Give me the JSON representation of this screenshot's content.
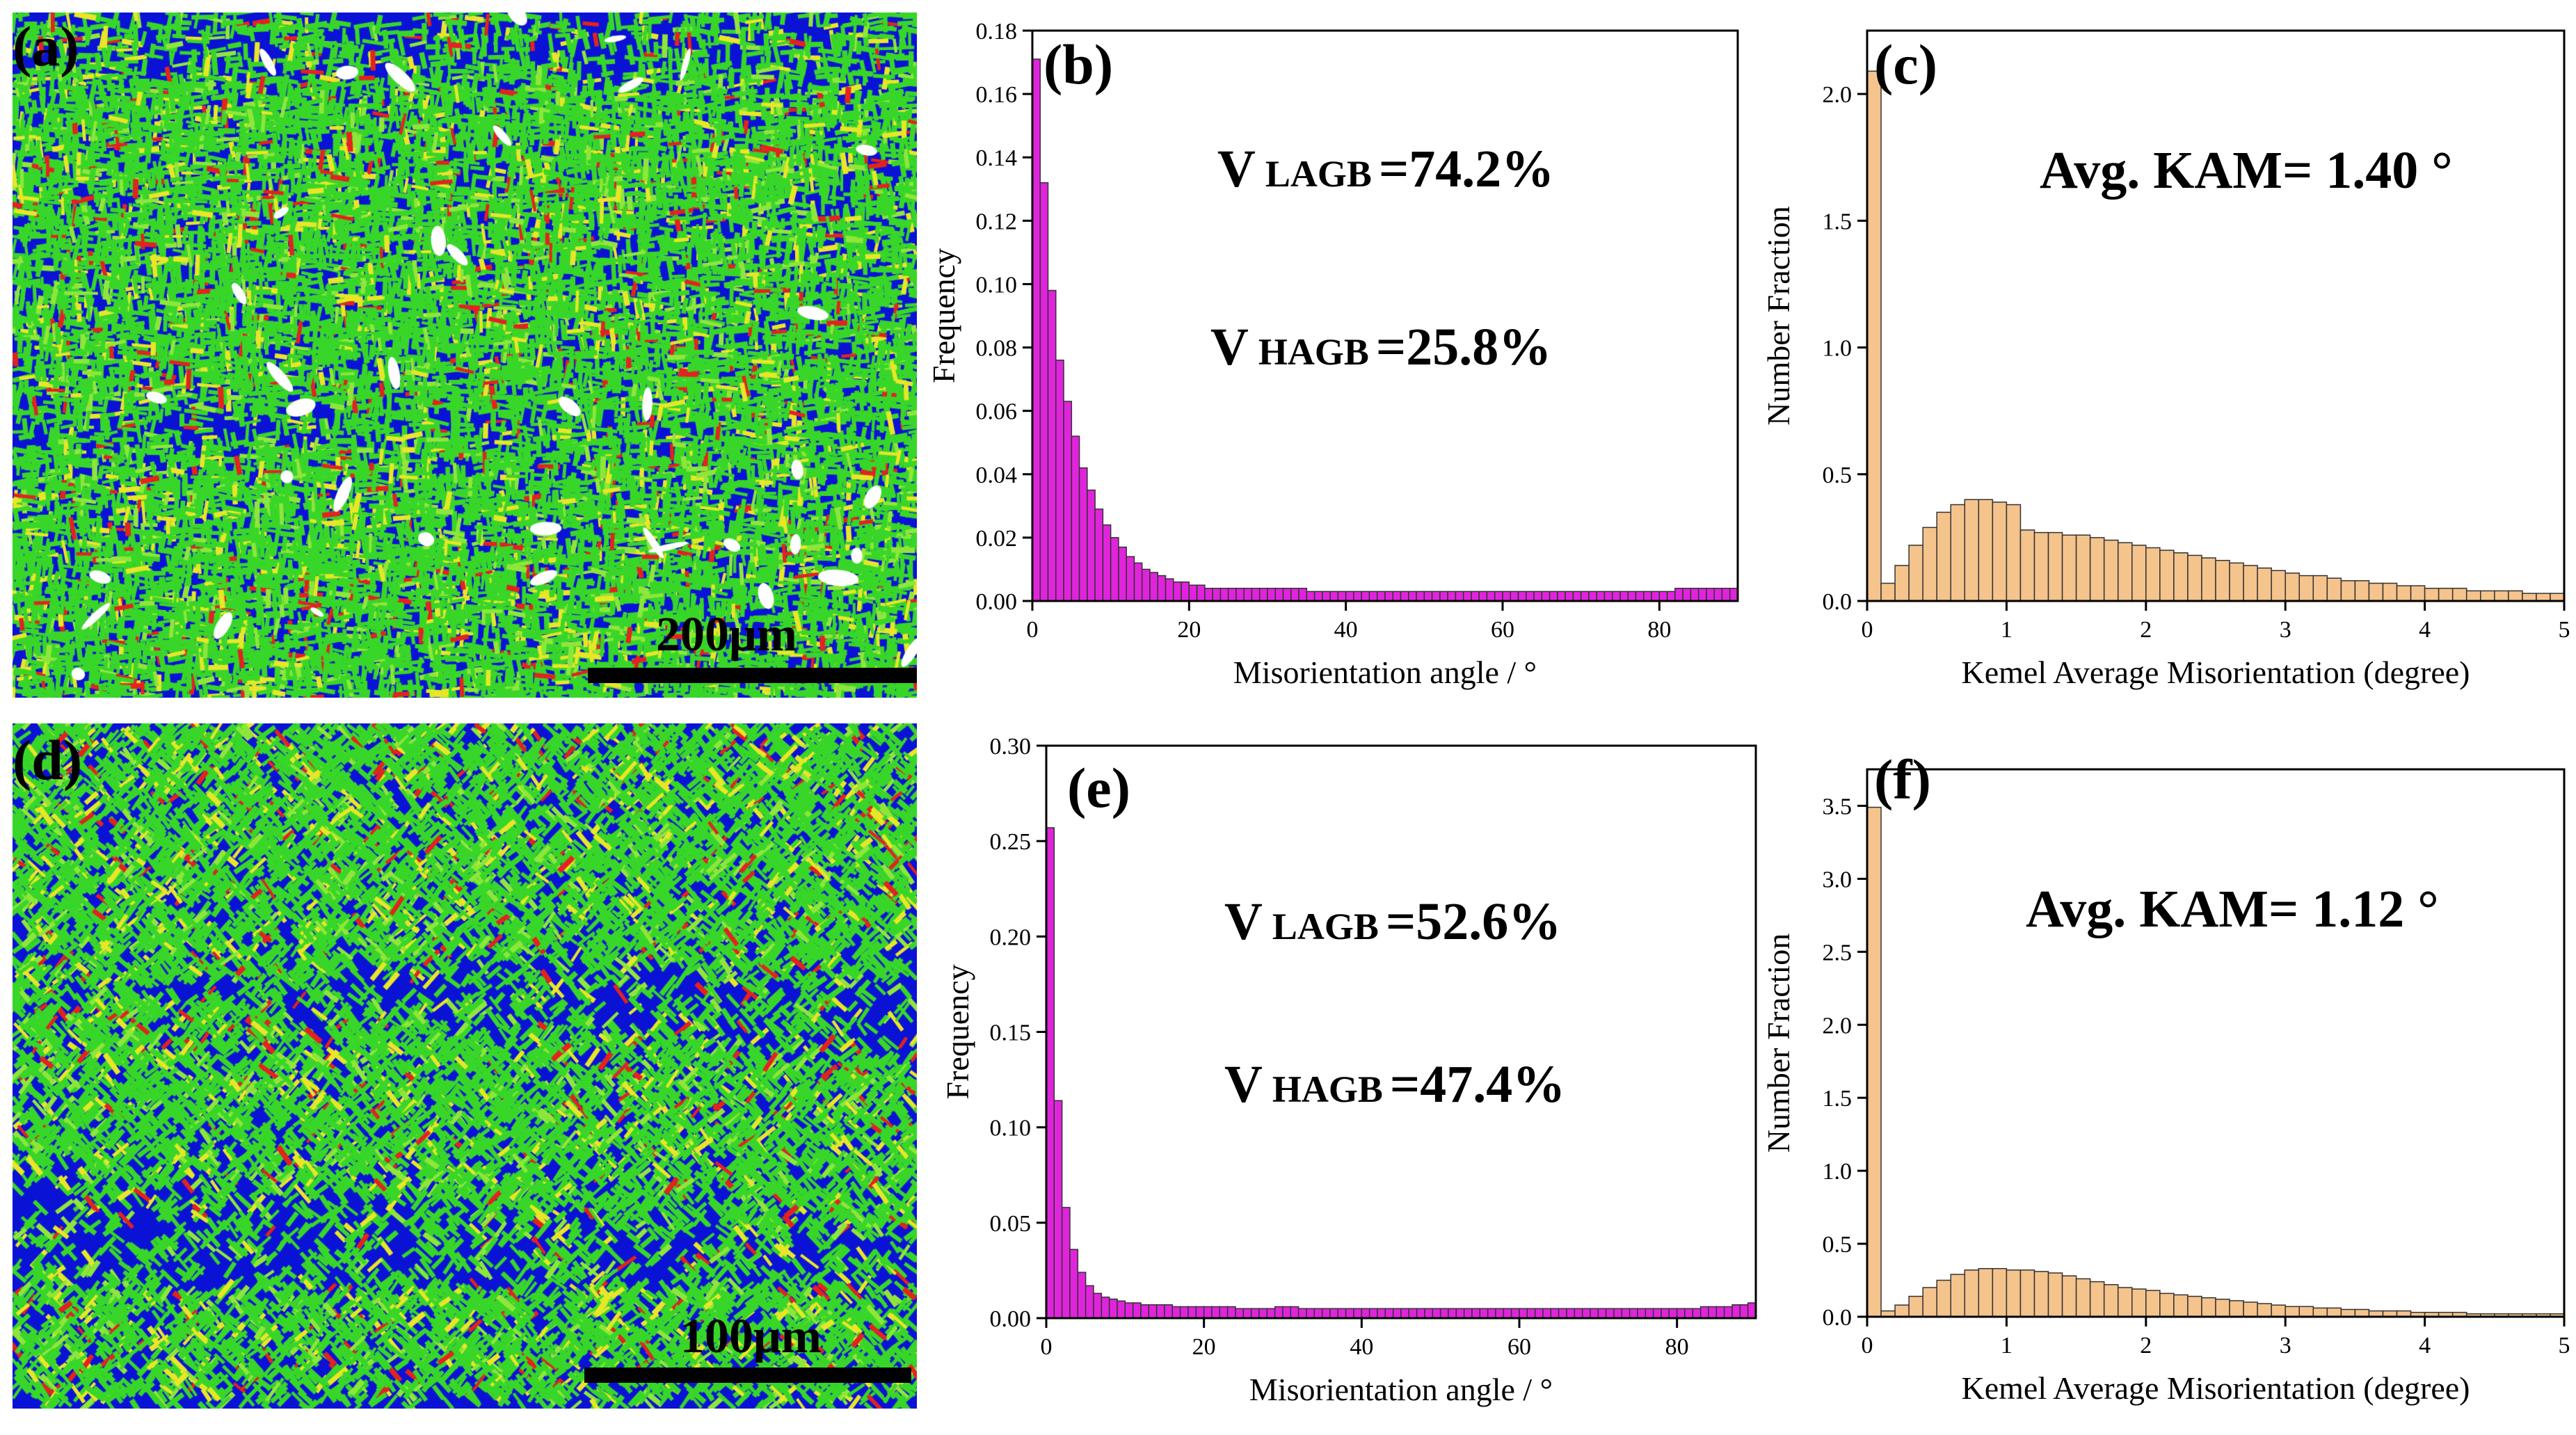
{
  "maps": [
    {
      "label": "(a)",
      "scale_text": "200μm"
    },
    {
      "label": "(d)",
      "scale_text": "100μm"
    }
  ],
  "colors": {
    "map_blue": "#0a12d6",
    "map_green": "#38d629",
    "map_yellow": "#e8e628",
    "map_red": "#e2231f",
    "magenta": "#e024dc",
    "tan": "#f5c38c"
  },
  "chart_data": [
    {
      "id": "b",
      "label": "(b)",
      "type": "bar",
      "xlabel": "Misorientation angle / °",
      "ylabel": "Frequency",
      "xlim": [
        0,
        90
      ],
      "ylim": [
        0,
        0.18
      ],
      "xticks": [
        0,
        20,
        40,
        60,
        80
      ],
      "xtick_labels": [
        "0",
        "20",
        "40",
        "60",
        "80"
      ],
      "yticks": [
        0,
        0.02,
        0.04,
        0.06,
        0.08,
        0.1,
        0.12,
        0.14,
        0.16,
        0.18
      ],
      "ytick_labels": [
        "0.00",
        "0.02",
        "0.04",
        "0.06",
        "0.08",
        "0.10",
        "0.12",
        "0.14",
        "0.16",
        "0.18"
      ],
      "bin_start": 0,
      "bin_width": 1,
      "color": "#e024dc",
      "values": [
        0.171,
        0.132,
        0.098,
        0.076,
        0.063,
        0.052,
        0.042,
        0.035,
        0.029,
        0.024,
        0.02,
        0.017,
        0.014,
        0.012,
        0.01,
        0.009,
        0.008,
        0.007,
        0.006,
        0.006,
        0.005,
        0.005,
        0.004,
        0.004,
        0.004,
        0.004,
        0.004,
        0.004,
        0.004,
        0.004,
        0.004,
        0.004,
        0.004,
        0.004,
        0.004,
        0.003,
        0.003,
        0.003,
        0.003,
        0.003,
        0.003,
        0.003,
        0.003,
        0.003,
        0.003,
        0.003,
        0.003,
        0.003,
        0.003,
        0.003,
        0.003,
        0.003,
        0.003,
        0.003,
        0.003,
        0.003,
        0.003,
        0.003,
        0.003,
        0.003,
        0.003,
        0.003,
        0.003,
        0.003,
        0.003,
        0.003,
        0.003,
        0.003,
        0.003,
        0.003,
        0.003,
        0.003,
        0.003,
        0.003,
        0.003,
        0.003,
        0.003,
        0.003,
        0.003,
        0.003,
        0.003,
        0.003,
        0.004,
        0.004,
        0.004,
        0.004,
        0.004,
        0.004,
        0.004,
        0.004
      ],
      "annotations": [
        {
          "prefix": "V",
          "sub": "LAGB",
          "value": "=74.2%"
        },
        {
          "prefix": "V",
          "sub": "HAGB",
          "value": "=25.8%"
        }
      ]
    },
    {
      "id": "c",
      "label": "(c)",
      "type": "bar",
      "xlabel": "Kemel Average Misorientation (degree)",
      "ylabel": "Number Fraction",
      "xlim": [
        0,
        5
      ],
      "ylim": [
        0,
        2.25
      ],
      "xticks": [
        0,
        1,
        2,
        3,
        4,
        5
      ],
      "xtick_labels": [
        "0",
        "1",
        "2",
        "3",
        "4",
        "5"
      ],
      "yticks": [
        0,
        0.5,
        1.0,
        1.5,
        2.0
      ],
      "ytick_labels": [
        "0.0",
        "0.5",
        "1.0",
        "1.5",
        "2.0"
      ],
      "bin_start": 0,
      "bin_width": 0.1,
      "color": "#f5c38c",
      "values": [
        2.09,
        0.07,
        0.14,
        0.22,
        0.29,
        0.35,
        0.38,
        0.4,
        0.4,
        0.39,
        0.38,
        0.28,
        0.27,
        0.27,
        0.26,
        0.26,
        0.25,
        0.24,
        0.23,
        0.22,
        0.21,
        0.2,
        0.19,
        0.18,
        0.17,
        0.16,
        0.15,
        0.14,
        0.13,
        0.12,
        0.11,
        0.1,
        0.1,
        0.09,
        0.08,
        0.08,
        0.07,
        0.07,
        0.06,
        0.06,
        0.05,
        0.05,
        0.05,
        0.04,
        0.04,
        0.04,
        0.04,
        0.03,
        0.03,
        0.03
      ],
      "annotations": [
        {
          "prefix": "Avg. KAM= 1.40 °"
        }
      ]
    },
    {
      "id": "e",
      "label": "(e)",
      "type": "bar",
      "xlabel": "Misorientation angle / °",
      "ylabel": "Frequency",
      "xlim": [
        0,
        90
      ],
      "ylim": [
        0,
        0.3
      ],
      "xticks": [
        0,
        20,
        40,
        60,
        80
      ],
      "xtick_labels": [
        "0",
        "20",
        "40",
        "60",
        "80"
      ],
      "yticks": [
        0,
        0.05,
        0.1,
        0.15,
        0.2,
        0.25,
        0.3
      ],
      "ytick_labels": [
        "0.00",
        "0.05",
        "0.10",
        "0.15",
        "0.20",
        "0.25",
        "0.30"
      ],
      "bin_start": 0,
      "bin_width": 1,
      "color": "#e024dc",
      "values": [
        0.257,
        0.114,
        0.058,
        0.036,
        0.024,
        0.017,
        0.013,
        0.011,
        0.01,
        0.009,
        0.008,
        0.008,
        0.007,
        0.007,
        0.007,
        0.007,
        0.006,
        0.006,
        0.006,
        0.006,
        0.006,
        0.006,
        0.006,
        0.006,
        0.005,
        0.005,
        0.005,
        0.005,
        0.005,
        0.006,
        0.006,
        0.006,
        0.005,
        0.005,
        0.005,
        0.005,
        0.005,
        0.005,
        0.005,
        0.005,
        0.005,
        0.005,
        0.005,
        0.005,
        0.005,
        0.005,
        0.005,
        0.005,
        0.005,
        0.005,
        0.005,
        0.005,
        0.005,
        0.005,
        0.005,
        0.005,
        0.005,
        0.005,
        0.005,
        0.005,
        0.005,
        0.005,
        0.005,
        0.005,
        0.005,
        0.005,
        0.005,
        0.005,
        0.005,
        0.005,
        0.005,
        0.005,
        0.005,
        0.005,
        0.005,
        0.005,
        0.005,
        0.005,
        0.005,
        0.005,
        0.005,
        0.005,
        0.005,
        0.006,
        0.006,
        0.006,
        0.006,
        0.007,
        0.007,
        0.008
      ],
      "annotations": [
        {
          "prefix": "V",
          "sub": "LAGB",
          "value": "=52.6%"
        },
        {
          "prefix": "V",
          "sub": "HAGB",
          "value": "=47.4%"
        }
      ]
    },
    {
      "id": "f",
      "label": "(f)",
      "type": "bar",
      "xlabel": "Kemel Average Misorientation (degree)",
      "ylabel": "Number Fraction",
      "xlim": [
        0,
        5
      ],
      "ylim": [
        0,
        3.75
      ],
      "xticks": [
        0,
        1,
        2,
        3,
        4,
        5
      ],
      "xtick_labels": [
        "0",
        "1",
        "2",
        "3",
        "4",
        "5"
      ],
      "yticks": [
        0,
        0.5,
        1.0,
        1.5,
        2.0,
        2.5,
        3.0,
        3.5
      ],
      "ytick_labels": [
        "0.0",
        "0.5",
        "1.0",
        "1.5",
        "2.0",
        "2.5",
        "3.0",
        "3.5"
      ],
      "bin_start": 0,
      "bin_width": 0.1,
      "color": "#f5c38c",
      "values": [
        3.49,
        0.04,
        0.08,
        0.14,
        0.2,
        0.25,
        0.29,
        0.32,
        0.33,
        0.33,
        0.32,
        0.32,
        0.31,
        0.3,
        0.28,
        0.26,
        0.24,
        0.22,
        0.2,
        0.19,
        0.18,
        0.16,
        0.15,
        0.14,
        0.13,
        0.12,
        0.11,
        0.1,
        0.09,
        0.08,
        0.07,
        0.07,
        0.06,
        0.06,
        0.05,
        0.05,
        0.04,
        0.04,
        0.04,
        0.03,
        0.03,
        0.03,
        0.03,
        0.02,
        0.02,
        0.02,
        0.02,
        0.02,
        0.02,
        0.02
      ],
      "annotations": [
        {
          "prefix": "Avg. KAM= 1.12 °"
        }
      ]
    }
  ]
}
